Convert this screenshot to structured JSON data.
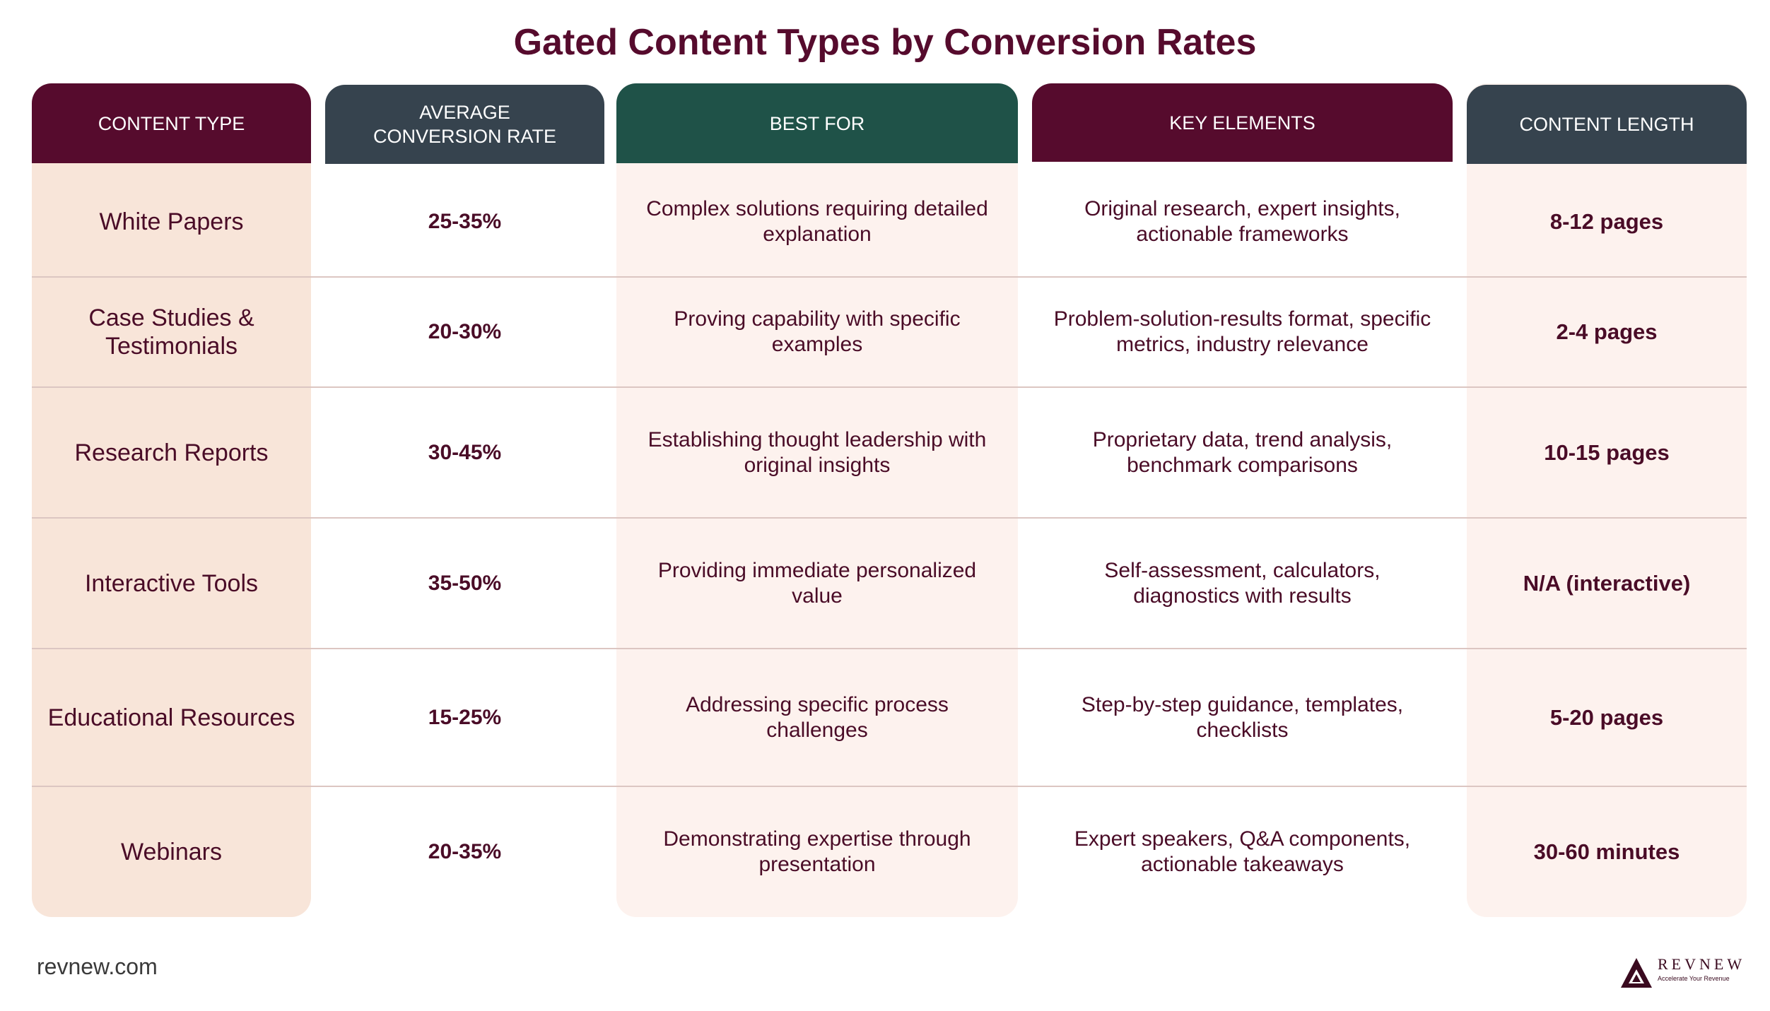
{
  "title": "Gated Content Types by Conversion Rates",
  "headers": {
    "type": "CONTENT TYPE",
    "rate": "AVERAGE CONVERSION RATE",
    "best": "BEST FOR",
    "key": "KEY ELEMENTS",
    "length": "CONTENT LENGTH"
  },
  "rows": [
    {
      "type": "White Papers",
      "rate": "25-35%",
      "best": "Complex solutions requiring detailed explanation",
      "key": "Original research, expert insights, actionable frameworks",
      "length": "8-12 pages"
    },
    {
      "type": "Case Studies & Testimonials",
      "rate": "20-30%",
      "best": "Proving capability with specific examples",
      "key": "Problem-solution-results format, specific metrics, industry relevance",
      "length": "2-4 pages"
    },
    {
      "type": "Research Reports",
      "rate": "30-45%",
      "best": "Establishing thought leadership with original insights",
      "key": "Proprietary data, trend analysis, benchmark comparisons",
      "length": "10-15 pages"
    },
    {
      "type": "Interactive Tools",
      "rate": "35-50%",
      "best": "Providing immediate personalized value",
      "key": "Self-assessment, calculators, diagnostics with results",
      "length": "N/A (interactive)"
    },
    {
      "type": "Educational Resources",
      "rate": "15-25%",
      "best": "Addressing specific process challenges",
      "key": "Step-by-step guidance, templates, checklists",
      "length": "5-20 pages"
    },
    {
      "type": "Webinars",
      "rate": "20-35%",
      "best": "Demonstrating expertise through presentation",
      "key": "Expert speakers, Q&A components, actionable takeaways",
      "length": "30-60 minutes"
    }
  ],
  "footer": {
    "site": "revnew.com"
  },
  "logo": {
    "name": "REVNEW",
    "tagline": "Accelerate Your Revenue"
  },
  "colors": {
    "maroon": "#560b2d",
    "slate": "#36434e",
    "green": "#1f5248",
    "peach": "#f8e5d9",
    "cream": "#fdf2ee"
  }
}
